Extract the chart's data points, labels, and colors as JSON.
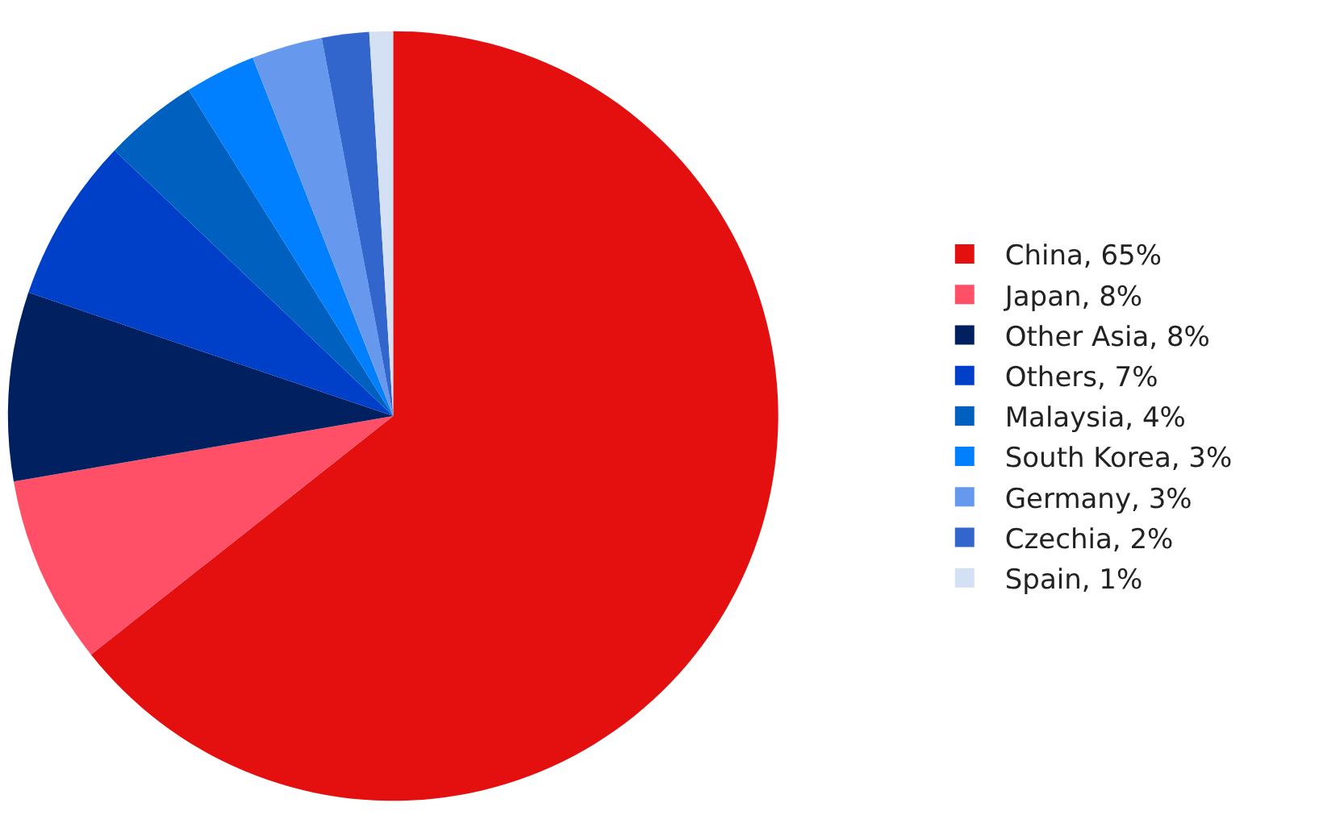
{
  "chart_data": {
    "type": "pie",
    "categories": [
      "China, 65%",
      "Japan, 8%",
      "Other Asia, 8%",
      "Others, 7%",
      "Malaysia, 4%",
      "South Korea, 3%",
      "Germany, 3%",
      "Czechia, 2%",
      "Spain, 1%"
    ],
    "values": [
      65,
      8,
      8,
      7,
      4,
      3,
      3,
      2,
      1
    ],
    "colors": [
      "#e41010",
      "#ff5068",
      "#002060",
      "#0040c8",
      "#0060c0",
      "#0080ff",
      "#6699ee",
      "#3366cc",
      "#d4e0f4"
    ],
    "legend": "right"
  }
}
